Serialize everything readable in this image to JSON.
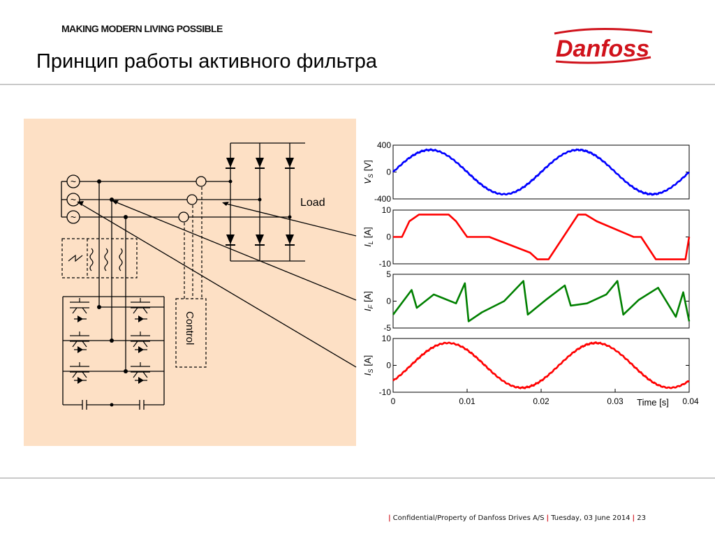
{
  "header": {
    "tagline": "MAKING MODERN LIVING POSSIBLE",
    "title": "Принцип работы активного фильтра",
    "logo_text": "Danfoss",
    "brand_color": "#d0121b"
  },
  "diagram": {
    "load_label": "Load",
    "control_label": "Control",
    "source_symbol": "~"
  },
  "charts": {
    "x_ticks": [
      "0",
      "0.01",
      "0.02",
      "0.03",
      "0.04"
    ],
    "x_label": "Time [s]",
    "panels": [
      {
        "label_main": "V",
        "label_sub": "S",
        "label_unit": "[V]",
        "ticks": [
          "400",
          "0",
          "-400"
        ],
        "color": "#0000ff"
      },
      {
        "label_main": "I",
        "label_sub": "L",
        "label_unit": "[A]",
        "ticks": [
          "10",
          "0",
          "-10"
        ],
        "color": "#ff0000"
      },
      {
        "label_main": "I",
        "label_sub": "F",
        "label_unit": "[A]",
        "ticks": [
          "5",
          "0",
          "-5"
        ],
        "color": "#008000"
      },
      {
        "label_main": "I",
        "label_sub": "S",
        "label_unit": "[A]",
        "ticks": [
          "10",
          "0",
          "-10"
        ],
        "color": "#ff0000"
      }
    ]
  },
  "chart_data": [
    {
      "type": "line",
      "xlabel": "Time [s]",
      "ylabel": "V_S [V]",
      "xlim": [
        0,
        0.04
      ],
      "ylim": [
        -400,
        400
      ],
      "series": [
        {
          "x": [
            0,
            0.005,
            0.01,
            0.015,
            0.02,
            0.025,
            0.03,
            0.035,
            0.04
          ],
          "values": [
            0,
            330,
            0,
            -330,
            0,
            330,
            0,
            -330,
            0
          ]
        }
      ]
    },
    {
      "type": "line",
      "xlabel": "Time [s]",
      "ylabel": "I_L [A]",
      "xlim": [
        0,
        0.04
      ],
      "ylim": [
        -12,
        12
      ],
      "series": [
        {
          "x": [
            0,
            0.0012,
            0.0022,
            0.0035,
            0.0075,
            0.0085,
            0.01,
            0.013,
            0.0185,
            0.0195,
            0.021,
            0.025,
            0.026,
            0.0275,
            0.0325,
            0.0335,
            0.0355,
            0.0395,
            0.04
          ],
          "values": [
            0,
            0,
            7,
            10,
            10,
            7,
            0,
            0,
            -7,
            -10,
            -10,
            10,
            10,
            7,
            0,
            0,
            -10,
            -10,
            0
          ]
        }
      ]
    },
    {
      "type": "line",
      "xlabel": "Time [s]",
      "ylabel": "I_F [A]",
      "xlim": [
        0,
        0.04
      ],
      "ylim": [
        -6,
        6
      ],
      "series": [
        {
          "x": [
            0,
            0.0025,
            0.0032,
            0.0055,
            0.0085,
            0.0097,
            0.0102,
            0.012,
            0.015,
            0.0176,
            0.0182,
            0.0208,
            0.0232,
            0.024,
            0.0262,
            0.0288,
            0.0303,
            0.0311,
            0.0332,
            0.0358,
            0.0382,
            0.0392,
            0.04
          ],
          "values": [
            -3,
            2.5,
            -1.5,
            1.5,
            -0.5,
            4.0,
            -4.5,
            -2.5,
            0,
            4.5,
            -3.0,
            0.5,
            3.5,
            -1.0,
            -0.5,
            1.5,
            4.5,
            -3.0,
            0.3,
            3.0,
            -3.5,
            2.0,
            -4.5
          ]
        }
      ]
    },
    {
      "type": "line",
      "xlabel": "Time [s]",
      "ylabel": "I_S [A]",
      "xlim": [
        0,
        0.04
      ],
      "ylim": [
        -12,
        12
      ],
      "series": [
        {
          "x": [
            0,
            0.005,
            0.01,
            0.015,
            0.02,
            0.025,
            0.03,
            0.035,
            0.04
          ],
          "values": [
            -10,
            10,
            0,
            -10,
            0,
            10,
            0,
            -10,
            0
          ]
        }
      ]
    }
  ],
  "footer": {
    "confidential": "Confidential/Property of Danfoss Drives A/S",
    "date": "Tuesday, 03 June 2014",
    "page": "23",
    "separator": "|"
  }
}
